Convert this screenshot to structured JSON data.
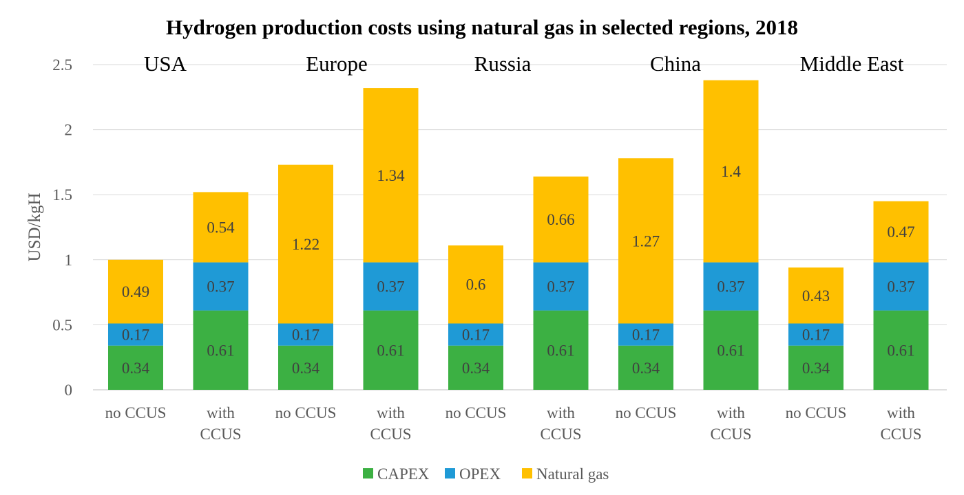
{
  "chart_data": {
    "type": "bar",
    "stacked": true,
    "title": "Hydrogen production costs using natural gas in selected regions, 2018",
    "xlabel": "",
    "ylabel": "USD/kgH",
    "ylim": [
      0,
      2.5
    ],
    "yticks": [
      0,
      0.5,
      1,
      1.5,
      2,
      2.5
    ],
    "ytick_labels": [
      "0",
      "0.5",
      "1",
      "1.5",
      "2",
      "2.5"
    ],
    "grid": true,
    "legend_position": "bottom",
    "regions": [
      "USA",
      "Europe",
      "Russia",
      "China",
      "Middle East"
    ],
    "categories": [
      "no CCUS",
      "with CCUS",
      "no CCUS",
      "with CCUS",
      "no CCUS",
      "with CCUS",
      "no CCUS",
      "with CCUS",
      "no CCUS",
      "with CCUS"
    ],
    "series": [
      {
        "name": "CAPEX",
        "color": "#3cb043",
        "values": [
          0.34,
          0.61,
          0.34,
          0.61,
          0.34,
          0.61,
          0.34,
          0.61,
          0.34,
          0.61
        ],
        "labels": [
          "0.34",
          "0.61",
          "0.34",
          "0.61",
          "0.34",
          "0.61",
          "0.34",
          "0.61",
          "0.34",
          "0.61"
        ]
      },
      {
        "name": "OPEX",
        "color": "#1f9ad6",
        "values": [
          0.17,
          0.37,
          0.17,
          0.37,
          0.17,
          0.37,
          0.17,
          0.37,
          0.17,
          0.37
        ],
        "labels": [
          "0.17",
          "0.37",
          "0.17",
          "0.37",
          "0.17",
          "0.37",
          "0.17",
          "0.37",
          "0.17",
          "0.37"
        ]
      },
      {
        "name": "Natural gas",
        "color": "#ffc000",
        "values": [
          0.49,
          0.54,
          1.22,
          1.34,
          0.6,
          0.66,
          1.27,
          1.4,
          0.43,
          0.47
        ],
        "labels": [
          "0.49",
          "0.54",
          "1.22",
          "1.34",
          "0.6",
          "0.66",
          "1.27",
          "1.4",
          "0.43",
          "0.47"
        ]
      }
    ]
  }
}
